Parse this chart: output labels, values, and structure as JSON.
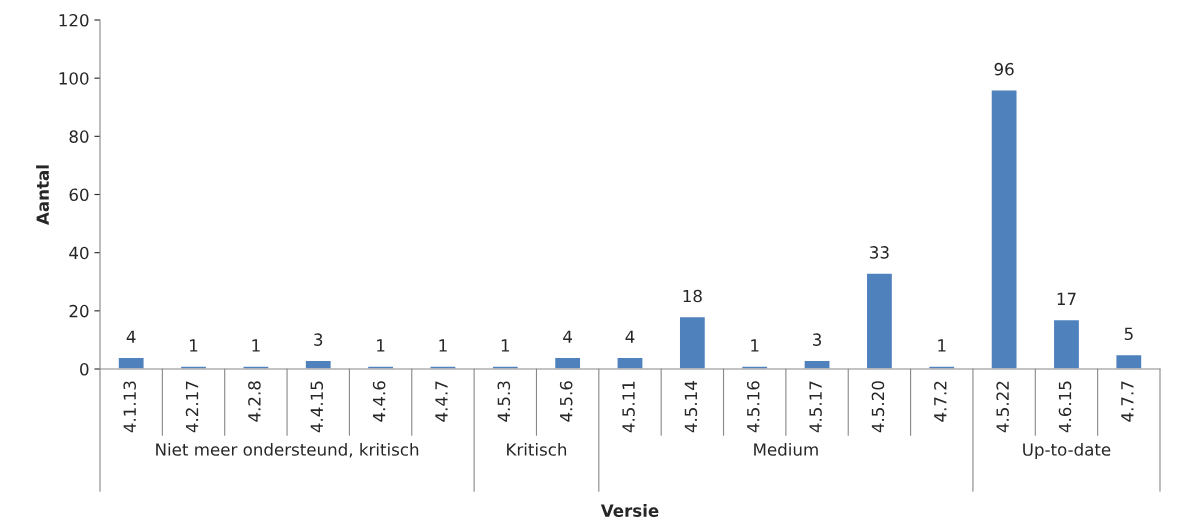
{
  "chart_data": {
    "type": "bar",
    "xlabel": "Versie",
    "ylabel": "Aantal",
    "categories": [
      "4.1.13",
      "4.2.17",
      "4.2.8",
      "4.4.15",
      "4.4.6",
      "4.4.7",
      "4.5.3",
      "4.5.6",
      "4.5.11",
      "4.5.14",
      "4.5.16",
      "4.5.17",
      "4.5.20",
      "4.7.2",
      "4.5.22",
      "4.6.15",
      "4.7.7"
    ],
    "values": [
      4,
      1,
      1,
      3,
      1,
      1,
      1,
      4,
      4,
      18,
      1,
      3,
      33,
      1,
      96,
      17,
      5
    ],
    "color": "#4f81bd",
    "data_labels": true,
    "grid": false,
    "ylim": [
      0,
      120
    ],
    "yticks": [
      0,
      20,
      40,
      60,
      80,
      100,
      120
    ],
    "annotations": [
      "Niet meer ondersteund, kritisch",
      "Kritisch",
      "Medium",
      "Up-to-date"
    ]
  }
}
